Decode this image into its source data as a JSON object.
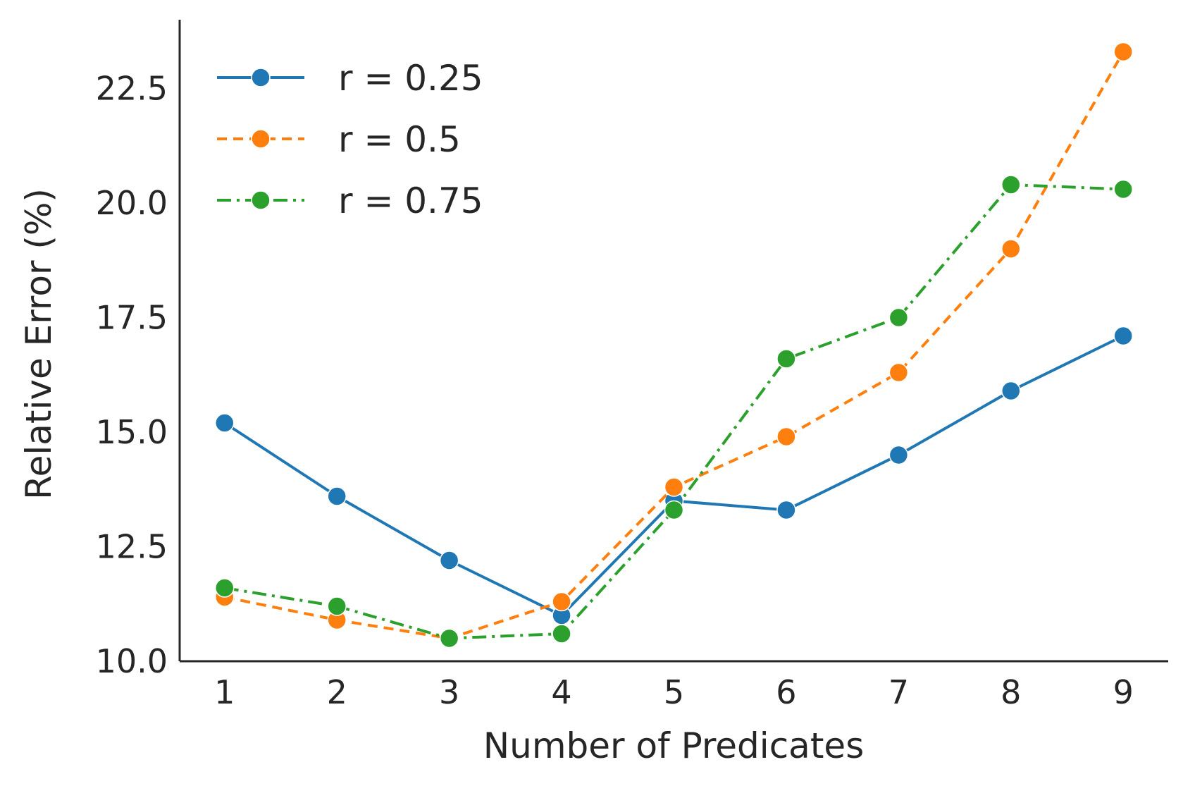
{
  "chart_data": {
    "type": "line",
    "title": "",
    "xlabel": "Number of Predicates",
    "ylabel": "Relative Error (%)",
    "x": [
      1,
      2,
      3,
      4,
      5,
      6,
      7,
      8,
      9
    ],
    "xticks": [
      "1",
      "2",
      "3",
      "4",
      "5",
      "6",
      "7",
      "8",
      "9"
    ],
    "yticks": [
      "10.0",
      "12.5",
      "15.0",
      "17.5",
      "20.0",
      "22.5"
    ],
    "ytick_values": [
      10.0,
      12.5,
      15.0,
      17.5,
      20.0,
      22.5
    ],
    "ylim": [
      10.0,
      24.0
    ],
    "xlim": [
      0.6,
      9.4
    ],
    "grid": false,
    "legend_position": "top-left",
    "series": [
      {
        "name": "r = 0.25",
        "color": "#1f77b4",
        "linestyle": "solid",
        "values": [
          15.2,
          13.6,
          12.2,
          11.0,
          13.5,
          13.3,
          14.5,
          15.9,
          17.1
        ]
      },
      {
        "name": "r = 0.5",
        "color": "#ff7f0e",
        "linestyle": "dashed",
        "values": [
          11.4,
          10.9,
          10.5,
          11.3,
          13.8,
          14.9,
          16.3,
          19.0,
          23.3
        ]
      },
      {
        "name": "r = 0.75",
        "color": "#2ca02c",
        "linestyle": "dashdot",
        "values": [
          11.6,
          11.2,
          10.5,
          10.6,
          13.3,
          16.6,
          17.5,
          20.4,
          20.3
        ]
      }
    ]
  }
}
